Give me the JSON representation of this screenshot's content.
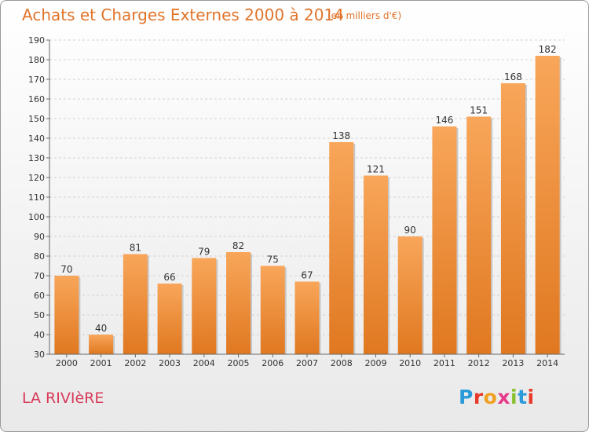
{
  "header": {
    "title": "Achats et Charges Externes 2000 à 2014",
    "subtitle": "(en milliers d'€)"
  },
  "footer": {
    "commune": "LA RIVIèRE",
    "logo": "Proxiti"
  },
  "colors": {
    "bar_light": "#f8a65a",
    "bar_dark": "#e07820",
    "title": "#e0742a",
    "commune": "#d83a5a",
    "logo": [
      "#2a9ad8",
      "#e83a2a",
      "#f0a020",
      "#e83a8a",
      "#8ac030",
      "#2a9ad8",
      "#e83a2a"
    ]
  },
  "chart_data": {
    "type": "bar",
    "title": "Achats et Charges Externes 2000 à 2014",
    "subtitle": "(en milliers d'€)",
    "categories": [
      "2000",
      "2001",
      "2002",
      "2003",
      "2004",
      "2005",
      "2006",
      "2007",
      "2008",
      "2009",
      "2010",
      "2011",
      "2012",
      "2013",
      "2014"
    ],
    "values": [
      70,
      40,
      81,
      66,
      79,
      82,
      75,
      67,
      138,
      121,
      90,
      146,
      151,
      168,
      182
    ],
    "ylim": [
      30,
      190
    ],
    "yticks": [
      30,
      40,
      50,
      60,
      70,
      80,
      90,
      100,
      110,
      120,
      130,
      140,
      150,
      160,
      170,
      180,
      190
    ],
    "grid": true,
    "data_labels": true
  }
}
